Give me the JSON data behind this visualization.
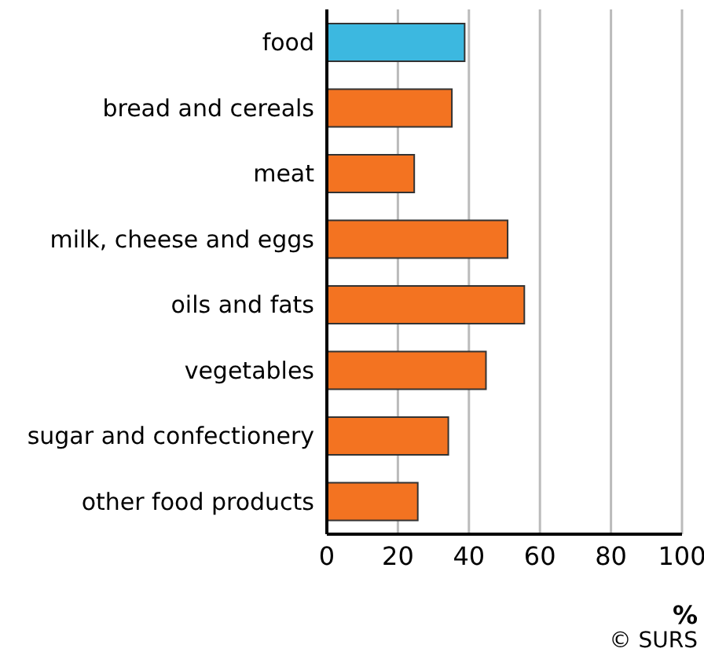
{
  "chart_data": {
    "type": "bar",
    "orientation": "horizontal",
    "categories": [
      "food",
      "bread and cereals",
      "meat",
      "milk, cheese and eggs",
      "oils and fats",
      "vegetables",
      "sugar and confectionery",
      "other food products"
    ],
    "values": [
      38.8,
      35.2,
      24.6,
      50.9,
      55.6,
      44.8,
      34.2,
      25.6
    ],
    "colors": [
      "#3cb8e0",
      "#f37321",
      "#f37321",
      "#f37321",
      "#f37321",
      "#f37321",
      "#f37321",
      "#f37321"
    ],
    "xlim": [
      0,
      100
    ],
    "xticks": [
      0,
      20,
      40,
      60,
      80,
      100
    ],
    "xlabel": "%",
    "grid": "x",
    "annotations": [
      "© SURS"
    ]
  }
}
